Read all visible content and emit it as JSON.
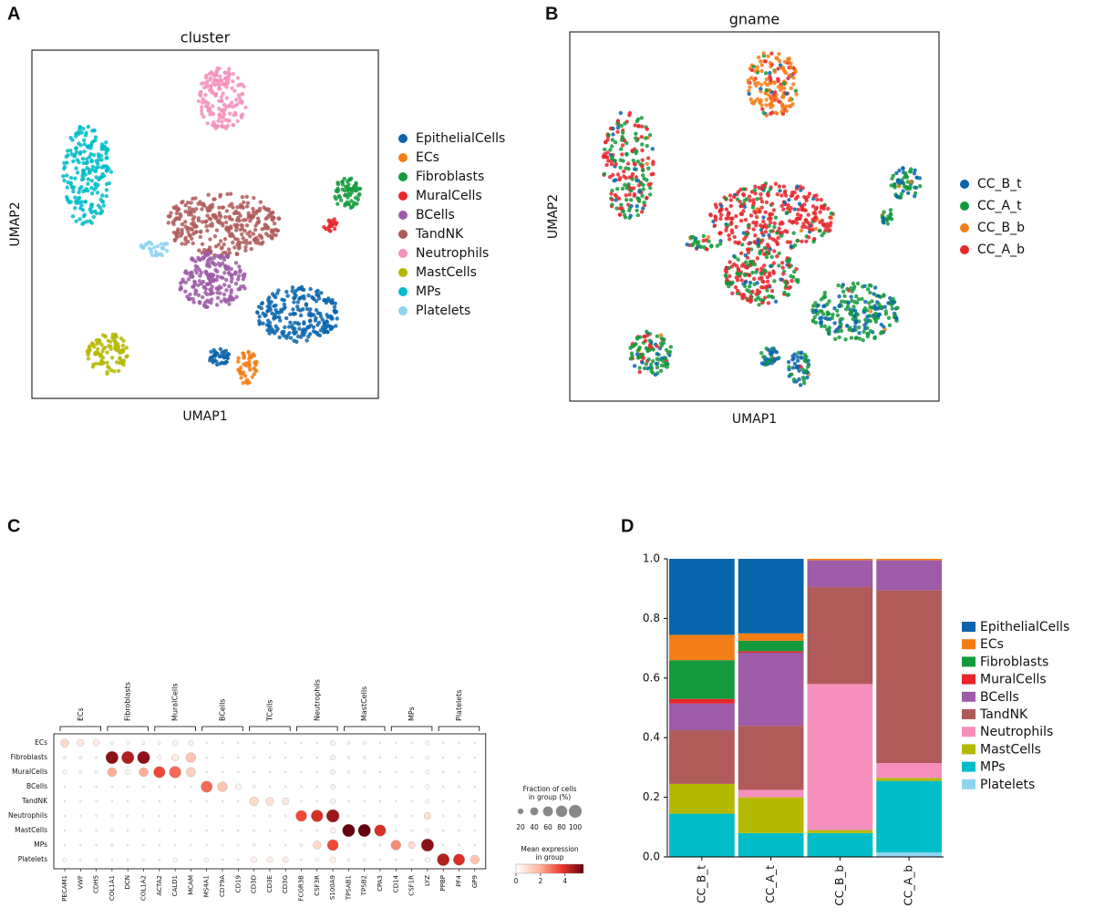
{
  "chart_data": [
    {
      "type": "umap",
      "panel_label": "A",
      "title": "cluster",
      "xlabel": "UMAP1",
      "ylabel": "UMAP2",
      "series": [
        {
          "name": "EpithelialCells",
          "color": "#0865ac"
        },
        {
          "name": "ECs",
          "color": "#f47e16"
        },
        {
          "name": "Fibroblasts",
          "color": "#149a3c"
        },
        {
          "name": "MuralCells",
          "color": "#e8262b"
        },
        {
          "name": "BCells",
          "color": "#9e5ba8"
        },
        {
          "name": "TandNK",
          "color": "#b05a5a"
        },
        {
          "name": "Neutrophils",
          "color": "#f590bd"
        },
        {
          "name": "MastCells",
          "color": "#b5b800"
        },
        {
          "name": "MPs",
          "color": "#00bcc8"
        },
        {
          "name": "Platelets",
          "color": "#8fd4ee"
        }
      ]
    },
    {
      "type": "umap",
      "panel_label": "B",
      "title": "gname",
      "xlabel": "UMAP1",
      "ylabel": "UMAP2",
      "series": [
        {
          "name": "CC_B_t",
          "color": "#0865ac"
        },
        {
          "name": "CC_A_t",
          "color": "#149a3c"
        },
        {
          "name": "CC_B_b",
          "color": "#f47e16"
        },
        {
          "name": "CC_A_b",
          "color": "#e8262b"
        }
      ]
    },
    {
      "type": "dotplot",
      "panel_label": "C",
      "genes": [
        "PECAM1",
        "VWF",
        "CDH5",
        "COL1A1",
        "DCN",
        "COL1A2",
        "ACTA2",
        "CALD1",
        "MCAM",
        "MS4A1",
        "CD79A",
        "CD19",
        "CD3D",
        "CD3E",
        "CD3G",
        "FCGR3B",
        "CSF3R",
        "S100A9",
        "TPSAB1",
        "TPSB2",
        "CPA3",
        "CD14",
        "CSF1R",
        "LYZ",
        "PPBP",
        "PF4",
        "GP9"
      ],
      "gene_groups": [
        "ECs",
        "Fibroblasts",
        "MuralCells",
        "BCells",
        "TCells",
        "Neutrophils",
        "MastCells",
        "MPs",
        "Platelets"
      ],
      "groups": [
        "ECs",
        "Fibroblasts",
        "MuralCells",
        "BCells",
        "TandNK",
        "Neutrophils",
        "MastCells",
        "MPs",
        "Platelets"
      ],
      "fraction": [
        [
          40,
          30,
          25,
          5,
          5,
          5,
          5,
          20,
          15,
          2,
          2,
          2,
          2,
          2,
          2,
          2,
          2,
          15,
          5,
          5,
          2,
          2,
          2,
          10,
          2,
          2,
          2
        ],
        [
          5,
          5,
          2,
          95,
          95,
          95,
          10,
          30,
          60,
          2,
          2,
          2,
          2,
          2,
          2,
          2,
          2,
          15,
          5,
          5,
          2,
          2,
          2,
          10,
          2,
          2,
          2
        ],
        [
          10,
          5,
          5,
          50,
          15,
          50,
          80,
          85,
          55,
          2,
          2,
          2,
          2,
          2,
          2,
          2,
          2,
          15,
          5,
          5,
          2,
          2,
          2,
          10,
          2,
          2,
          2
        ],
        [
          2,
          2,
          2,
          2,
          2,
          2,
          2,
          2,
          2,
          80,
          60,
          20,
          5,
          2,
          2,
          2,
          2,
          15,
          2,
          2,
          2,
          2,
          2,
          10,
          2,
          2,
          2
        ],
        [
          2,
          2,
          2,
          2,
          2,
          2,
          2,
          2,
          2,
          2,
          2,
          2,
          50,
          40,
          30,
          2,
          2,
          15,
          2,
          2,
          2,
          2,
          2,
          10,
          2,
          2,
          2
        ],
        [
          2,
          2,
          2,
          2,
          2,
          2,
          2,
          2,
          2,
          2,
          2,
          2,
          2,
          2,
          2,
          75,
          85,
          100,
          2,
          2,
          2,
          5,
          2,
          30,
          2,
          2,
          2
        ],
        [
          2,
          2,
          2,
          5,
          2,
          2,
          2,
          2,
          2,
          2,
          2,
          2,
          2,
          2,
          2,
          2,
          2,
          20,
          95,
          95,
          80,
          2,
          2,
          10,
          2,
          2,
          2
        ],
        [
          2,
          2,
          2,
          5,
          2,
          2,
          2,
          2,
          2,
          2,
          2,
          2,
          5,
          2,
          2,
          5,
          40,
          75,
          5,
          5,
          2,
          60,
          30,
          95,
          2,
          2,
          2
        ],
        [
          10,
          2,
          2,
          2,
          2,
          2,
          2,
          10,
          2,
          10,
          2,
          2,
          20,
          20,
          20,
          2,
          10,
          20,
          5,
          5,
          2,
          2,
          2,
          15,
          90,
          80,
          50
        ]
      ],
      "expression": [
        [
          1.0,
          0.6,
          0.5,
          0.1,
          0.1,
          0.1,
          0.1,
          0.3,
          0.3,
          0,
          0,
          0,
          0,
          0,
          0,
          0,
          0,
          0.3,
          0.1,
          0.1,
          0,
          0,
          0,
          0.2,
          0,
          0,
          0
        ],
        [
          0.1,
          0.1,
          0,
          5.0,
          4.5,
          5.0,
          0.2,
          0.6,
          1.5,
          0,
          0,
          0,
          0,
          0,
          0,
          0,
          0,
          0.3,
          0.1,
          0.1,
          0,
          0,
          0,
          0.2,
          0,
          0,
          0
        ],
        [
          0.2,
          0.1,
          0.1,
          2.0,
          0.3,
          2.0,
          3.5,
          3.0,
          1.2,
          0,
          0,
          0,
          0,
          0,
          0,
          0,
          0,
          0.3,
          0.1,
          0.1,
          0,
          0,
          0,
          0.2,
          0,
          0,
          0
        ],
        [
          0,
          0,
          0,
          0,
          0,
          0,
          0,
          0,
          0,
          3.0,
          1.5,
          0.3,
          0.1,
          0,
          0,
          0,
          0,
          0.3,
          0,
          0,
          0,
          0,
          0,
          0.2,
          0,
          0,
          0
        ],
        [
          0,
          0,
          0,
          0,
          0,
          0,
          0,
          0,
          0,
          0,
          0,
          0,
          1.0,
          0.8,
          0.6,
          0,
          0,
          0.3,
          0,
          0,
          0,
          0,
          0,
          0.2,
          0,
          0,
          0
        ],
        [
          0,
          0,
          0,
          0,
          0,
          0,
          0,
          0,
          0,
          0,
          0,
          0,
          0,
          0,
          0,
          3.5,
          4.0,
          4.8,
          0,
          0,
          0,
          0.1,
          0,
          0.8,
          0,
          0,
          0
        ],
        [
          0,
          0,
          0,
          0.1,
          0,
          0,
          0,
          0,
          0,
          0,
          0,
          0,
          0,
          0,
          0,
          0,
          0,
          0.4,
          5.5,
          5.5,
          4.0,
          0,
          0,
          0.2,
          0,
          0,
          0
        ],
        [
          0,
          0,
          0,
          0.1,
          0,
          0,
          0,
          0,
          0,
          0,
          0,
          0,
          0.1,
          0,
          0,
          0.1,
          1.0,
          3.5,
          0.1,
          0.1,
          0,
          2.5,
          1.0,
          5.0,
          0,
          0,
          0
        ],
        [
          0.2,
          0,
          0,
          0,
          0,
          0,
          0,
          0.2,
          0,
          0.2,
          0,
          0,
          0.4,
          0.4,
          0.4,
          0,
          0.2,
          0.4,
          0.1,
          0.1,
          0,
          0,
          0,
          0.3,
          4.5,
          4.0,
          1.5
        ]
      ],
      "size_legend_title": [
        "Fraction of cells",
        "in group (%)"
      ],
      "size_ticks": [
        20,
        40,
        60,
        80,
        100
      ],
      "color_legend_title": [
        "Mean expression",
        "in group"
      ],
      "clim": [
        0,
        5.5
      ],
      "cticks": [
        0,
        2,
        4
      ],
      "colors": [
        "#ffffff",
        "#fcbba1",
        "#ef3b2c",
        "#67000d"
      ]
    },
    {
      "type": "stacked_bar",
      "panel_label": "D",
      "categories": [
        "CC_B_t",
        "CC_A_t",
        "CC_B_b",
        "CC_A_b"
      ],
      "ylim": [
        0,
        1
      ],
      "yticks": [
        {
          "value": 0,
          "label": "0.0"
        },
        0.2,
        0.4,
        0.6,
        0.8,
        {
          "value": 1,
          "label": "1.0"
        }
      ],
      "series": [
        {
          "name": "EpithelialCells",
          "color": "#0865ac",
          "values": [
            0.255,
            0.25,
            0,
            0
          ]
        },
        {
          "name": "ECs",
          "color": "#f47e16",
          "values": [
            0.085,
            0.025,
            0.005,
            0.005
          ]
        },
        {
          "name": "Fibroblasts",
          "color": "#149a3c",
          "values": [
            0.13,
            0.035,
            0,
            0
          ]
        },
        {
          "name": "MuralCells",
          "color": "#e8262b",
          "values": [
            0.015,
            0.005,
            0,
            0
          ]
        },
        {
          "name": "BCells",
          "color": "#9e5ba8",
          "values": [
            0.09,
            0.245,
            0.09,
            0.1
          ]
        },
        {
          "name": "TandNK",
          "color": "#b05a5a",
          "values": [
            0.18,
            0.215,
            0.325,
            0.58
          ]
        },
        {
          "name": "Neutrophils",
          "color": "#f590bd",
          "values": [
            0,
            0.025,
            0.49,
            0.05
          ]
        },
        {
          "name": "MastCells",
          "color": "#b5b800",
          "values": [
            0.1,
            0.12,
            0.01,
            0.01
          ]
        },
        {
          "name": "MPs",
          "color": "#00bcc8",
          "values": [
            0.145,
            0.08,
            0.08,
            0.24
          ]
        },
        {
          "name": "Platelets",
          "color": "#8fd4ee",
          "values": [
            0,
            0,
            0,
            0.015
          ]
        }
      ]
    }
  ]
}
